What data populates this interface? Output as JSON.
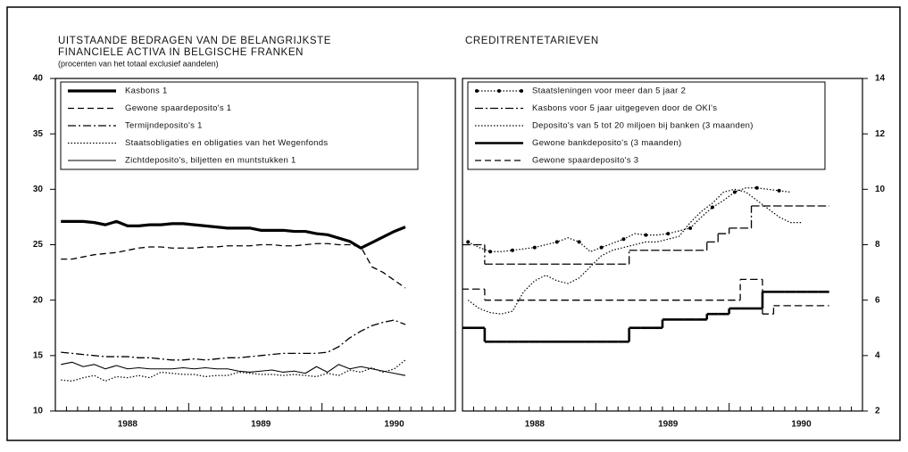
{
  "chart_data": [
    {
      "type": "line",
      "title": [
        "UITSTAANDE BEDRAGEN VAN DE BELANGRIJKSTE",
        "FINANCIELE ACTIVA IN BELGISCHE FRANKEN"
      ],
      "subtitle": "(procenten van het totaal exclusief aandelen)",
      "categories": [
        null,
        null,
        null,
        null,
        null,
        null,
        "1988",
        null,
        null,
        null,
        null,
        null,
        null,
        null,
        null,
        null,
        null,
        null,
        "1989",
        null,
        null,
        null,
        null,
        null,
        null,
        null,
        null,
        null,
        null,
        null,
        "1990",
        null,
        null,
        null,
        null,
        null
      ],
      "ylim": [
        10,
        40
      ],
      "yticks": [
        10,
        15,
        20,
        25,
        30,
        35,
        40
      ],
      "yaxis_side": "left",
      "legend": true,
      "series": [
        {
          "name": "Kasbons 1",
          "color": "#000000",
          "dash": "solid",
          "linewidth": 3.2,
          "values": [
            27.1,
            27.1,
            27.1,
            27.0,
            26.8,
            27.1,
            26.7,
            26.7,
            26.8,
            26.8,
            26.9,
            26.9,
            26.8,
            26.7,
            26.6,
            26.5,
            26.5,
            26.5,
            26.3,
            26.3,
            26.3,
            26.2,
            26.2,
            26.0,
            25.9,
            25.6,
            25.3,
            24.7,
            25.2,
            25.7,
            26.2,
            26.6,
            null,
            null,
            null,
            null
          ]
        },
        {
          "name": "Gewone spaardeposito's 1",
          "color": "#000000",
          "dash": "dashed",
          "linewidth": 1.3,
          "values": [
            23.7,
            23.7,
            23.9,
            24.1,
            24.2,
            24.3,
            24.5,
            24.7,
            24.8,
            24.8,
            24.7,
            24.7,
            24.7,
            24.8,
            24.8,
            24.9,
            24.9,
            24.9,
            25.0,
            25.0,
            24.9,
            24.9,
            25.0,
            25.1,
            25.1,
            25.0,
            25.0,
            24.8,
            23.0,
            22.5,
            21.8,
            21.1,
            null,
            null,
            null,
            null
          ]
        },
        {
          "name": "Termijndeposito's 1",
          "color": "#000000",
          "dash": "dashdot",
          "linewidth": 1.3,
          "values": [
            15.3,
            15.2,
            15.1,
            15.0,
            14.9,
            14.9,
            14.9,
            14.8,
            14.8,
            14.7,
            14.6,
            14.6,
            14.7,
            14.6,
            14.7,
            14.8,
            14.8,
            14.9,
            15.0,
            15.1,
            15.2,
            15.2,
            15.2,
            15.2,
            15.3,
            15.8,
            16.6,
            17.2,
            17.7,
            18.0,
            18.2,
            17.8,
            null,
            null,
            null,
            null
          ]
        },
        {
          "name": "Staatsobligaties en obligaties van het Wegenfonds",
          "color": "#000000",
          "dash": "dotted",
          "linewidth": 1.2,
          "values": [
            12.8,
            12.7,
            13.0,
            13.2,
            12.7,
            13.1,
            13.0,
            13.2,
            13.0,
            13.5,
            13.4,
            13.3,
            13.3,
            13.1,
            13.2,
            13.2,
            13.5,
            13.4,
            13.3,
            13.3,
            13.2,
            13.3,
            13.2,
            13.1,
            13.4,
            13.2,
            13.7,
            13.5,
            13.9,
            13.5,
            13.8,
            14.6,
            null,
            null,
            null,
            null
          ]
        },
        {
          "name": "Zichtdeposito's, biljetten en muntstukken 1",
          "color": "#000000",
          "dash": "solid",
          "linewidth": 1.1,
          "values": [
            14.2,
            14.4,
            14.0,
            14.2,
            13.8,
            14.1,
            13.8,
            13.9,
            13.8,
            13.8,
            13.8,
            13.9,
            13.8,
            13.9,
            13.8,
            13.8,
            13.6,
            13.5,
            13.6,
            13.7,
            13.5,
            13.6,
            13.4,
            14.0,
            13.5,
            14.2,
            13.8,
            14.0,
            13.8,
            13.6,
            13.4,
            13.2,
            null,
            null,
            null,
            null
          ]
        }
      ]
    },
    {
      "type": "line",
      "title": [
        "CREDITRENTETARIEVEN"
      ],
      "categories": [
        null,
        null,
        null,
        null,
        null,
        null,
        "1988",
        null,
        null,
        null,
        null,
        null,
        null,
        null,
        null,
        null,
        null,
        null,
        "1989",
        null,
        null,
        null,
        null,
        null,
        null,
        null,
        null,
        null,
        null,
        null,
        "1990",
        null,
        null,
        null,
        null,
        null
      ],
      "ylim": [
        2,
        14
      ],
      "yticks": [
        2,
        4,
        6,
        8,
        10,
        12,
        14
      ],
      "yaxis_side": "right",
      "legend": true,
      "series": [
        {
          "name": "Staatsleningen voor meer dan 5 jaar 2",
          "color": "#000000",
          "dash": "dotted",
          "linewidth": 1.2,
          "marker": true,
          "values": [
            8.1,
            7.9,
            7.75,
            7.75,
            7.8,
            7.85,
            7.9,
            8.0,
            8.1,
            8.25,
            8.1,
            7.75,
            7.9,
            8.05,
            8.2,
            8.4,
            8.35,
            8.35,
            8.4,
            8.5,
            8.6,
            9.0,
            9.35,
            9.6,
            9.9,
            10.05,
            10.05,
            10.0,
            9.95,
            9.9,
            null,
            null,
            null,
            null,
            null,
            null
          ]
        },
        {
          "name": "Kasbons voor 5 jaar uitgegeven door de OKI's",
          "color": "#000000",
          "dash": "dashdot",
          "linewidth": 1.3,
          "step": true,
          "values": [
            8.0,
            8.0,
            7.3,
            7.3,
            7.3,
            7.3,
            7.3,
            7.3,
            7.3,
            7.3,
            7.3,
            7.3,
            7.3,
            7.3,
            7.3,
            7.8,
            7.8,
            7.8,
            7.8,
            7.8,
            7.8,
            7.8,
            8.1,
            8.4,
            8.6,
            8.6,
            9.4,
            9.4,
            9.4,
            9.4,
            9.4,
            9.4,
            9.4,
            null,
            null,
            null
          ]
        },
        {
          "name": "Deposito's van 5 tot 20 miljoen bij banken (3 maanden)",
          "color": "#000000",
          "dash": "dotted",
          "linewidth": 1.2,
          "values": [
            6.0,
            5.7,
            5.55,
            5.5,
            5.6,
            6.3,
            6.7,
            6.9,
            6.7,
            6.6,
            6.8,
            7.2,
            7.6,
            7.8,
            7.9,
            8.0,
            8.1,
            8.1,
            8.2,
            8.3,
            8.8,
            9.2,
            9.5,
            9.9,
            10.0,
            9.9,
            9.6,
            9.3,
            9.0,
            8.8,
            8.8,
            null,
            null,
            null,
            null,
            null
          ]
        },
        {
          "name": "Gewone bankdeposito's (3 maanden)",
          "color": "#000000",
          "dash": "solid",
          "linewidth": 2.6,
          "step": true,
          "values": [
            5.0,
            5.0,
            4.5,
            4.5,
            4.5,
            4.5,
            4.5,
            4.5,
            4.5,
            4.5,
            4.5,
            4.5,
            4.5,
            4.5,
            4.5,
            5.0,
            5.0,
            5.0,
            5.3,
            5.3,
            5.3,
            5.3,
            5.5,
            5.5,
            5.7,
            5.7,
            5.7,
            6.3,
            6.3,
            6.3,
            6.3,
            6.3,
            6.3,
            null,
            null,
            null
          ]
        },
        {
          "name": "Gewone spaardeposito's 3",
          "color": "#000000",
          "dash": "dashed",
          "linewidth": 1.3,
          "step": true,
          "values": [
            6.4,
            6.4,
            6.0,
            6.0,
            6.0,
            6.0,
            6.0,
            6.0,
            6.0,
            6.0,
            6.0,
            6.0,
            6.0,
            6.0,
            6.0,
            6.0,
            6.0,
            6.0,
            6.0,
            6.0,
            6.0,
            6.0,
            6.0,
            6.0,
            6.0,
            6.75,
            6.75,
            5.5,
            5.8,
            5.8,
            5.8,
            5.8,
            5.8,
            null,
            null,
            null
          ]
        }
      ]
    }
  ]
}
